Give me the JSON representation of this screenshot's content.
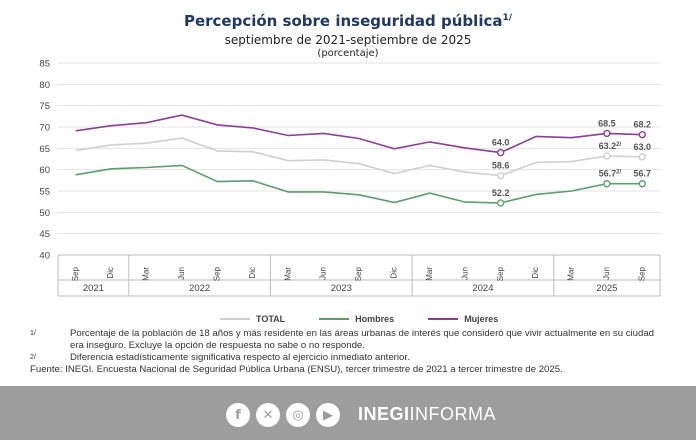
{
  "chart_data": {
    "type": "line",
    "title": "Percepción sobre inseguridad pública",
    "title_note": "1/",
    "subtitle": "septiembre de 2021-septiembre de 2025",
    "unit": "(porcentaje)",
    "ylim": [
      40,
      85
    ],
    "yticks": [
      "40",
      "45",
      "50",
      "55",
      "60",
      "65",
      "70",
      "75",
      "80",
      "85"
    ],
    "grid": true,
    "legend": "bottom",
    "categories": [
      "Sep",
      "Dic",
      "Mar",
      "Jun",
      "Sep",
      "Dic",
      "Mar",
      "Jun",
      "Sep",
      "Dic",
      "Mar",
      "Jun",
      "Sep",
      "Dic",
      "Mar",
      "Jun",
      "Sep"
    ],
    "years": [
      {
        "label": "2021",
        "span": 2
      },
      {
        "label": "2022",
        "span": 4
      },
      {
        "label": "2023",
        "span": 4
      },
      {
        "label": "2024",
        "span": 4
      },
      {
        "label": "2025",
        "span": 3
      }
    ],
    "series": [
      {
        "name": "TOTAL",
        "color": "#cfcfcf",
        "values": [
          64.5,
          65.8,
          66.2,
          67.4,
          64.4,
          64.2,
          62.1,
          62.3,
          61.4,
          59.1,
          61.0,
          59.4,
          58.6,
          61.7,
          61.9,
          63.2,
          63.0
        ]
      },
      {
        "name": "Hombres",
        "color": "#5d9e6c",
        "values": [
          58.8,
          60.2,
          60.5,
          61.0,
          57.2,
          57.4,
          54.8,
          54.8,
          54.1,
          52.3,
          54.5,
          52.4,
          52.2,
          54.2,
          55.0,
          56.7,
          56.7
        ]
      },
      {
        "name": "Mujeres",
        "color": "#8b3d97",
        "values": [
          69.1,
          70.3,
          71.0,
          72.8,
          70.5,
          69.8,
          68.0,
          68.5,
          67.3,
          64.9,
          66.5,
          65.1,
          64.0,
          67.8,
          67.5,
          68.5,
          68.2
        ]
      }
    ],
    "annotations": [
      {
        "series": 2,
        "index": 12,
        "label": "64.0"
      },
      {
        "series": 2,
        "index": 15,
        "label": "68.5"
      },
      {
        "series": 2,
        "index": 16,
        "label": "68.2"
      },
      {
        "series": 0,
        "index": 12,
        "label": "58.6"
      },
      {
        "series": 0,
        "index": 15,
        "label": "63.2",
        "note": "2/"
      },
      {
        "series": 0,
        "index": 16,
        "label": "63.0"
      },
      {
        "series": 1,
        "index": 12,
        "label": "52.2"
      },
      {
        "series": 1,
        "index": 15,
        "label": "56.7",
        "note": "2/"
      },
      {
        "series": 1,
        "index": 16,
        "label": "56.7"
      }
    ]
  },
  "notes": [
    {
      "mark": "1/",
      "text": "Porcentaje de la población de 18 años y más residente en las áreas urbanas de interés que consideró que vivir actualmente en su ciudad era inseguro. Excluye la opción de respuesta no sabe o no responde."
    },
    {
      "mark": "2/",
      "text": "Diferencia estadísticamente significativa respecto al ejercicio inmediato anterior."
    }
  ],
  "source": "Fuente: INEGI. Encuesta Nacional de Seguridad Pública Urbana (ENSU), tercer trimestre de 2021 a tercer trimestre de 2025.",
  "footer": {
    "icons": [
      "facebook-icon",
      "x-icon",
      "instagram-icon",
      "youtube-icon"
    ],
    "brand_bold": "INEGI",
    "brand_light": "INFORMA"
  }
}
